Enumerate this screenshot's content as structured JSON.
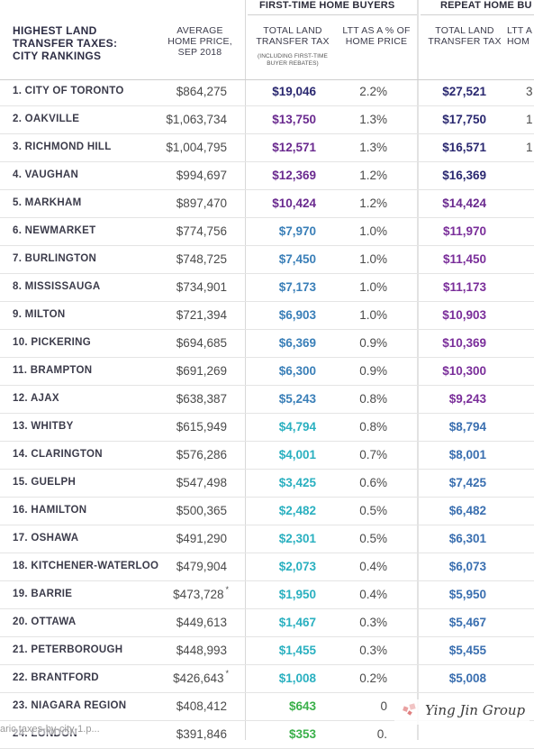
{
  "header": {
    "group1": "FIRST-TIME HOME BUYERS",
    "group2": "REPEAT HOME BU",
    "title_lines": [
      "HIGHEST LAND",
      "TRANSFER TAXES:",
      "CITY RANKINGS"
    ],
    "avg_price_lines": [
      "AVERAGE",
      "HOME PRICE,",
      "SEP 2018"
    ],
    "ltt_lines": [
      "TOTAL LAND",
      "TRANSFER TAX"
    ],
    "ltt_sub_lines": [
      "(INCLUDING FIRST-TIME",
      "BUYER REBATES)"
    ],
    "pct_lines": [
      "LTT AS A % OF",
      "HOME PRICE"
    ],
    "ltt2_lines": [
      "TOTAL LAND",
      "TRANSFER TAX"
    ],
    "pct2_lines": [
      "LTT A",
      "HOM"
    ]
  },
  "rows": [
    {
      "city": "1. CITY OF TORONTO",
      "price": "$864,275",
      "star": "",
      "ltt1": "$19,046",
      "pct1": "2.2%",
      "ltt2": "$27,521",
      "pct2": "3",
      "c1": "#2a2870",
      "c2": "#2a2870"
    },
    {
      "city": "2. OAKVILLE",
      "price": "$1,063,734",
      "star": "",
      "ltt1": "$13,750",
      "pct1": "1.3%",
      "ltt2": "$17,750",
      "pct2": "1",
      "c1": "#6a2a8f",
      "c2": "#2a2870"
    },
    {
      "city": "3. RICHMOND HILL",
      "price": "$1,004,795",
      "star": "",
      "ltt1": "$12,571",
      "pct1": "1.3%",
      "ltt2": "$16,571",
      "pct2": "1",
      "c1": "#6a2a8f",
      "c2": "#2a2870"
    },
    {
      "city": "4. VAUGHAN",
      "price": "$994,697",
      "star": "",
      "ltt1": "$12,369",
      "pct1": "1.2%",
      "ltt2": "$16,369",
      "pct2": "",
      "c1": "#6a2a8f",
      "c2": "#2a2870"
    },
    {
      "city": "5. MARKHAM",
      "price": "$897,470",
      "star": "",
      "ltt1": "$10,424",
      "pct1": "1.2%",
      "ltt2": "$14,424",
      "pct2": "",
      "c1": "#6a2a8f",
      "c2": "#6a2a8f"
    },
    {
      "city": "6. NEWMARKET",
      "price": "$774,756",
      "star": "",
      "ltt1": "$7,970",
      "pct1": "1.0%",
      "ltt2": "$11,970",
      "pct2": "",
      "c1": "#3a7fb8",
      "c2": "#7a2e9a"
    },
    {
      "city": "7. BURLINGTON",
      "price": "$748,725",
      "star": "",
      "ltt1": "$7,450",
      "pct1": "1.0%",
      "ltt2": "$11,450",
      "pct2": "",
      "c1": "#3a7fb8",
      "c2": "#7a2e9a"
    },
    {
      "city": "8. MISSISSAUGA",
      "price": "$734,901",
      "star": "",
      "ltt1": "$7,173",
      "pct1": "1.0%",
      "ltt2": "$11,173",
      "pct2": "",
      "c1": "#3a7fb8",
      "c2": "#7a2e9a"
    },
    {
      "city": "9. MILTON",
      "price": "$721,394",
      "star": "",
      "ltt1": "$6,903",
      "pct1": "1.0%",
      "ltt2": "$10,903",
      "pct2": "",
      "c1": "#3a7fb8",
      "c2": "#7a2e9a"
    },
    {
      "city": "10. PICKERING",
      "price": "$694,685",
      "star": "",
      "ltt1": "$6,369",
      "pct1": "0.9%",
      "ltt2": "$10,369",
      "pct2": "",
      "c1": "#3a7fb8",
      "c2": "#7a2e9a"
    },
    {
      "city": "11. BRAMPTON",
      "price": "$691,269",
      "star": "",
      "ltt1": "$6,300",
      "pct1": "0.9%",
      "ltt2": "$10,300",
      "pct2": "",
      "c1": "#3a7fb8",
      "c2": "#7a2e9a"
    },
    {
      "city": "12. AJAX",
      "price": "$638,387",
      "star": "",
      "ltt1": "$5,243",
      "pct1": "0.8%",
      "ltt2": "$9,243",
      "pct2": "",
      "c1": "#3a7fb8",
      "c2": "#7a2e9a"
    },
    {
      "city": "13. WHITBY",
      "price": "$615,949",
      "star": "",
      "ltt1": "$4,794",
      "pct1": "0.8%",
      "ltt2": "$8,794",
      "pct2": "",
      "c1": "#2ab0c0",
      "c2": "#3a6fb0"
    },
    {
      "city": "14. CLARINGTON",
      "price": "$576,286",
      "star": "",
      "ltt1": "$4,001",
      "pct1": "0.7%",
      "ltt2": "$8,001",
      "pct2": "",
      "c1": "#2ab0c0",
      "c2": "#3a6fb0"
    },
    {
      "city": "15. GUELPH",
      "price": "$547,498",
      "star": "",
      "ltt1": "$3,425",
      "pct1": "0.6%",
      "ltt2": "$7,425",
      "pct2": "",
      "c1": "#2ab0c0",
      "c2": "#3a6fb0"
    },
    {
      "city": "16. HAMILTON",
      "price": "$500,365",
      "star": "",
      "ltt1": "$2,482",
      "pct1": "0.5%",
      "ltt2": "$6,482",
      "pct2": "",
      "c1": "#2ab0c0",
      "c2": "#3a6fb0"
    },
    {
      "city": "17. OSHAWA",
      "price": "$491,290",
      "star": "",
      "ltt1": "$2,301",
      "pct1": "0.5%",
      "ltt2": "$6,301",
      "pct2": "",
      "c1": "#2ab0c0",
      "c2": "#3a6fb0"
    },
    {
      "city": "18. KITCHENER-WATERLOO",
      "price": "$479,904",
      "star": "",
      "ltt1": "$2,073",
      "pct1": "0.4%",
      "ltt2": "$6,073",
      "pct2": "",
      "c1": "#2ab0c0",
      "c2": "#3a6fb0"
    },
    {
      "city": "19. BARRIE",
      "price": "$473,728",
      "star": "*",
      "ltt1": "$1,950",
      "pct1": "0.4%",
      "ltt2": "$5,950",
      "pct2": "",
      "c1": "#2ab0c0",
      "c2": "#3a6fb0"
    },
    {
      "city": "20. OTTAWA",
      "price": "$449,613",
      "star": "",
      "ltt1": "$1,467",
      "pct1": "0.3%",
      "ltt2": "$5,467",
      "pct2": "",
      "c1": "#2ab0c0",
      "c2": "#3a6fb0"
    },
    {
      "city": "21. PETERBOROUGH",
      "price": "$448,993",
      "star": "",
      "ltt1": "$1,455",
      "pct1": "0.3%",
      "ltt2": "$5,455",
      "pct2": "",
      "c1": "#2ab0c0",
      "c2": "#3a6fb0"
    },
    {
      "city": "22. BRANTFORD",
      "price": "$426,643",
      "star": "*",
      "ltt1": "$1,008",
      "pct1": "0.2%",
      "ltt2": "$5,008",
      "pct2": "",
      "c1": "#2ab0c0",
      "c2": "#3a6fb0"
    },
    {
      "city": "23. NIAGARA REGION",
      "price": "$408,412",
      "star": "",
      "ltt1": "$643",
      "pct1": "0",
      "ltt2": "",
      "pct2": "",
      "c1": "#3ab04a",
      "c2": "#3a6fb0"
    },
    {
      "city": "24. LONDON",
      "price": "$391,846",
      "star": "",
      "ltt1": "$353",
      "pct1": "0.",
      "ltt2": "",
      "pct2": "",
      "c1": "#3ab04a",
      "c2": "#3a6fb0"
    }
  ],
  "watermark": "Ying Jin Group",
  "url_fragment": "aric  taxes-by-city-1.p..."
}
